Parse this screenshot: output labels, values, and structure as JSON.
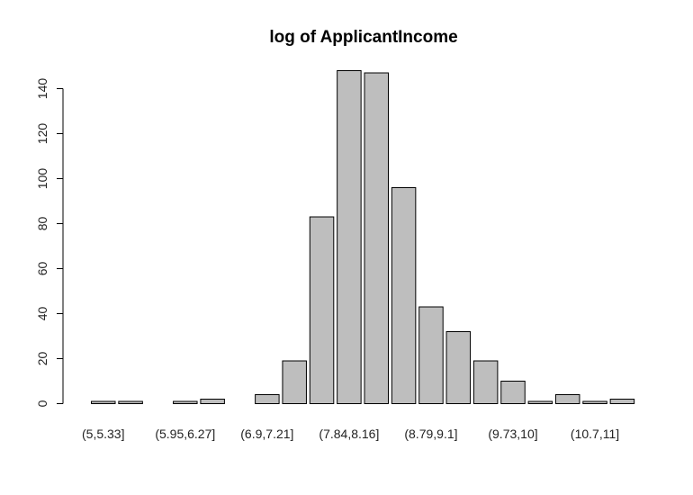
{
  "chart_data": {
    "type": "bar",
    "title": "log of ApplicantIncome",
    "xlabel": "",
    "ylabel": "",
    "ylim": [
      0,
      150
    ],
    "yticks": [
      0,
      20,
      40,
      60,
      80,
      100,
      120,
      140
    ],
    "categories": [
      "(5,5.33]",
      "(5.33,5.64]",
      "(5.64,5.95]",
      "(5.95,6.27]",
      "(6.27,6.58]",
      "(6.58,6.9]",
      "(6.9,7.21]",
      "(7.21,7.53]",
      "(7.53,7.84]",
      "(7.84,8.16]",
      "(8.16,8.47]",
      "(8.47,8.79]",
      "(8.79,9.1]",
      "(9.1,9.42]",
      "(9.42,9.73]",
      "(9.73,10]",
      "(10,10.4]",
      "(10.4,10.7]",
      "(10.7,11]",
      "(11,11.3]"
    ],
    "visible_tick_labels": [
      "(5,5.33]",
      "(5.95,6.27]",
      "(6.9,7.21]",
      "(7.84,8.16]",
      "(8.79,9.1]",
      "(9.73,10]",
      "(10.7,11]"
    ],
    "values": [
      1,
      1,
      0,
      1,
      2,
      0,
      4,
      19,
      83,
      148,
      147,
      96,
      43,
      32,
      19,
      10,
      1,
      4,
      1,
      2
    ],
    "bar_color": "#bebebe",
    "grid": false,
    "legend": "none"
  }
}
